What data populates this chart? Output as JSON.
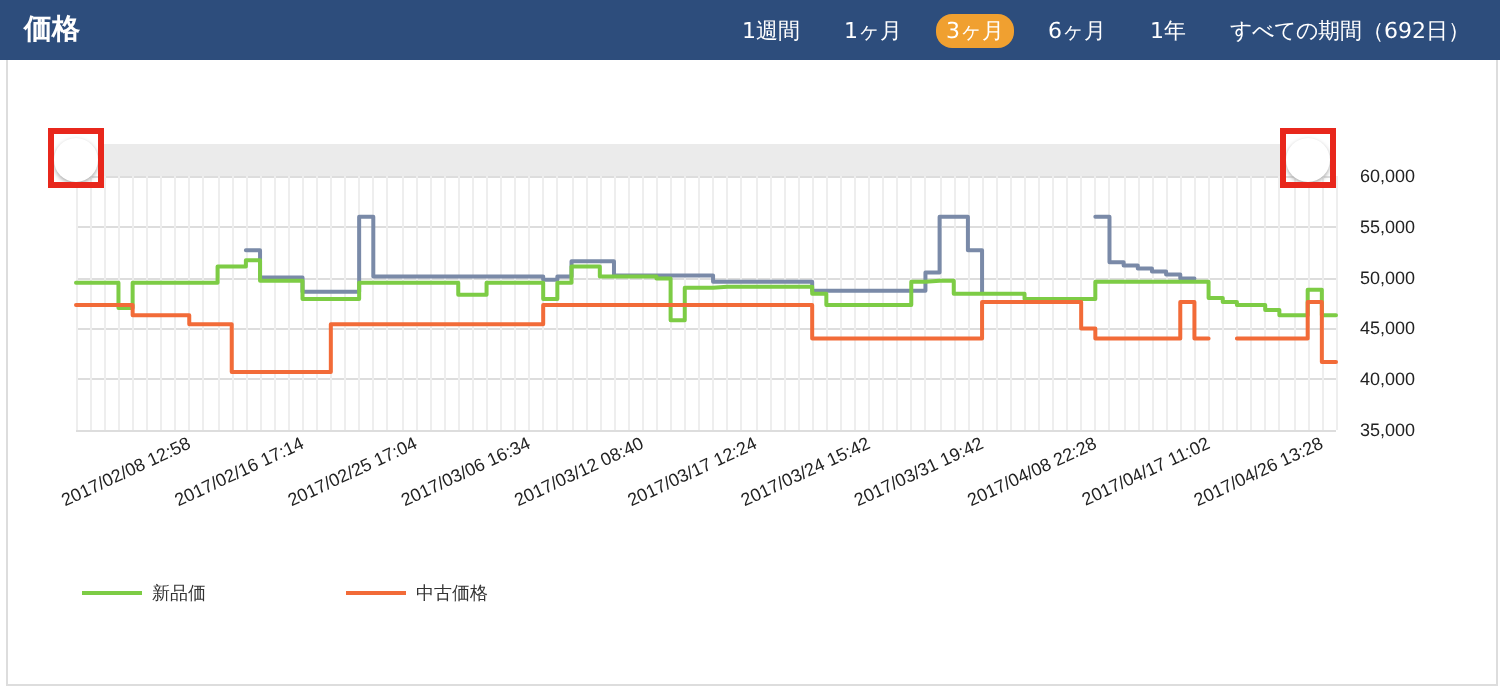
{
  "chart_data": {
    "type": "step",
    "title": "価格",
    "annotations": [
      "1週間",
      "1ヶ月",
      "3ヶ月",
      "6ヶ月",
      "1年",
      "すべての期間（692日）"
    ],
    "categories": [
      null,
      null,
      null,
      null,
      null,
      null,
      null,
      null,
      "2017/02/08 12:58",
      null,
      null,
      null,
      null,
      null,
      null,
      null,
      "2017/02/16 17:14",
      null,
      null,
      null,
      null,
      null,
      null,
      null,
      "2017/02/25 17:04",
      null,
      null,
      null,
      null,
      null,
      null,
      null,
      "2017/03/06 16:34",
      null,
      null,
      null,
      null,
      null,
      null,
      null,
      "2017/03/12 08:40",
      null,
      null,
      null,
      null,
      null,
      null,
      null,
      "2017/03/17 12:24",
      null,
      null,
      null,
      null,
      null,
      null,
      null,
      "2017/03/24 15:42",
      null,
      null,
      null,
      null,
      null,
      null,
      null,
      "2017/03/31 19:42",
      null,
      null,
      null,
      null,
      null,
      null,
      null,
      "2017/04/08 22:28",
      null,
      null,
      null,
      null,
      null,
      null,
      null,
      "2017/04/17 11:02",
      null,
      null,
      null,
      null,
      null,
      null,
      null,
      "2017/04/26 13:28",
      null
    ],
    "series": [
      {
        "color": "#7a8aa8",
        "values": [
          null,
          null,
          null,
          null,
          null,
          null,
          null,
          null,
          null,
          null,
          null,
          null,
          52700,
          50000,
          50000,
          50000,
          48600,
          48600,
          48600,
          48600,
          56000,
          50100,
          50100,
          50100,
          50100,
          50100,
          50100,
          50100,
          50100,
          50100,
          50100,
          50100,
          50100,
          49800,
          50100,
          51600,
          51600,
          51600,
          50200,
          50200,
          50200,
          50200,
          50200,
          50200,
          50200,
          49600,
          49600,
          49600,
          49600,
          49600,
          49600,
          49600,
          48700,
          48700,
          48700,
          48700,
          48700,
          48700,
          48700,
          48700,
          50500,
          56000,
          56000,
          52700,
          48500,
          null,
          null,
          null,
          null,
          null,
          null,
          null,
          56000,
          51500,
          51200,
          50900,
          50600,
          50300,
          49900,
          49900,
          null,
          null,
          null,
          null,
          null,
          null,
          null,
          null,
          null,
          null
        ]
      },
      {
        "name": "新品価",
        "color": "#7dcc45",
        "values": [
          49500,
          49500,
          49500,
          47000,
          49500,
          49500,
          49500,
          49500,
          49500,
          49500,
          51100,
          51100,
          51700,
          49700,
          49700,
          49700,
          47900,
          47900,
          47900,
          47900,
          49500,
          49500,
          49500,
          49500,
          49500,
          49500,
          49500,
          48300,
          48300,
          49500,
          49500,
          49500,
          49500,
          47900,
          49500,
          51100,
          51100,
          50100,
          50100,
          50100,
          50100,
          49900,
          45800,
          49000,
          49000,
          49100,
          49100,
          49100,
          49100,
          49100,
          49100,
          49100,
          48400,
          47300,
          47300,
          47300,
          47300,
          47300,
          47300,
          49600,
          49700,
          49700,
          48400,
          48400,
          48400,
          48400,
          48400,
          47900,
          47900,
          47900,
          47900,
          47900,
          49600,
          49600,
          49600,
          49600,
          49600,
          49600,
          49600,
          49600,
          48000,
          47600,
          47300,
          47300,
          46800,
          46300,
          46300,
          48800,
          46300,
          46300
        ]
      },
      {
        "name": "中古価格",
        "color": "#f26b38",
        "values": [
          47300,
          47300,
          47300,
          47300,
          46300,
          46300,
          46300,
          46300,
          45400,
          45400,
          45400,
          40700,
          40700,
          40700,
          40700,
          40700,
          40700,
          40700,
          45400,
          45400,
          45400,
          45400,
          45400,
          45400,
          45400,
          45400,
          45400,
          45400,
          45400,
          45400,
          45400,
          45400,
          45400,
          47300,
          47300,
          47300,
          47300,
          47300,
          47300,
          47300,
          47300,
          47300,
          47300,
          47300,
          47300,
          47300,
          47300,
          47300,
          47300,
          47300,
          47300,
          47300,
          44000,
          44000,
          44000,
          44000,
          44000,
          44000,
          44000,
          44000,
          44000,
          44000,
          44000,
          44000,
          47600,
          47600,
          47600,
          47600,
          47600,
          47600,
          47600,
          45000,
          44000,
          44000,
          44000,
          44000,
          44000,
          44000,
          47600,
          44000,
          44000,
          null,
          44000,
          44000,
          44000,
          44000,
          44000,
          47600,
          41700,
          41700
        ]
      }
    ],
    "ylim": [
      35000,
      60000
    ],
    "yticks": [
      {
        "value": 35000,
        "label": "35,000"
      },
      {
        "value": 40000,
        "label": "40,000"
      },
      {
        "value": 45000,
        "label": "45,000"
      },
      {
        "value": 50000,
        "label": "50,000"
      },
      {
        "value": 55000,
        "label": "55,000"
      },
      {
        "value": 60000,
        "label": "60,000"
      }
    ],
    "grid": true,
    "legend": "bottom left",
    "marker": "none",
    "line_style": "solid"
  }
}
